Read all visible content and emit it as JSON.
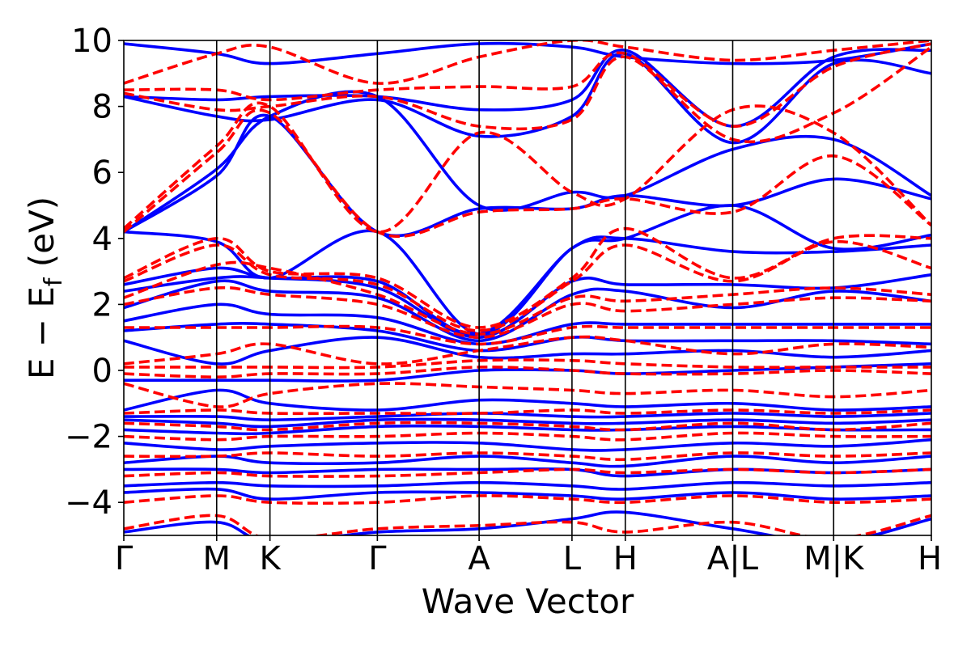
{
  "chart_data": {
    "type": "line",
    "title": "",
    "xlabel": "Wave Vector",
    "ylabel": "E − E",
    "ylabel_sub": "f",
    "ylabel_unit": " (eV)",
    "ylim": [
      -5,
      10
    ],
    "yticks": [
      -4,
      -2,
      0,
      2,
      4,
      6,
      8,
      10
    ],
    "ytick_labels": [
      "−4",
      "−2",
      "0",
      "2",
      "4",
      "6",
      "8",
      "10"
    ],
    "xlim": [
      0,
      1
    ],
    "kpoints": [
      {
        "label": "Γ",
        "x": 0.0
      },
      {
        "label": "M",
        "x": 0.115
      },
      {
        "label": "K",
        "x": 0.181
      },
      {
        "label": "Γ",
        "x": 0.314
      },
      {
        "label": "A",
        "x": 0.44
      },
      {
        "label": "L",
        "x": 0.555
      },
      {
        "label": "H",
        "x": 0.621
      },
      {
        "label": "A|L",
        "x": 0.754
      },
      {
        "label": "M|K",
        "x": 0.879
      },
      {
        "label": "H",
        "x": 1.0
      }
    ],
    "grid": false,
    "legend": "none",
    "series_styles": [
      {
        "color": "#0000ff",
        "dash": "solid"
      },
      {
        "color": "#ff0000",
        "dash": "dashed"
      }
    ],
    "series": [
      {
        "color": "#0000ff",
        "dash": "solid",
        "bands": [
          [
            9.9,
            9.6,
            9.3,
            9.6,
            9.9,
            9.8,
            9.5,
            9.3,
            9.4,
            9.9
          ],
          [
            8.3,
            8.2,
            8.3,
            8.3,
            7.9,
            8.2,
            9.7,
            7.4,
            9.5,
            9.7
          ],
          [
            8.3,
            7.7,
            7.6,
            8.2,
            7.1,
            7.7,
            9.6,
            6.9,
            9.3,
            9.0
          ],
          [
            4.2,
            6.1,
            7.7,
            8.3,
            5.0,
            5.4,
            5.3,
            6.7,
            7.0,
            5.3
          ],
          [
            4.2,
            5.9,
            7.7,
            4.2,
            4.9,
            4.9,
            5.3,
            5.0,
            5.8,
            5.2
          ],
          [
            4.2,
            3.9,
            2.8,
            4.2,
            1.1,
            3.7,
            4.0,
            5.0,
            3.7,
            4.1
          ],
          [
            2.6,
            3.1,
            2.8,
            2.7,
            1.1,
            3.7,
            4.0,
            3.6,
            3.6,
            3.8
          ],
          [
            2.4,
            2.8,
            2.8,
            2.5,
            1.0,
            2.7,
            2.6,
            2.6,
            2.5,
            2.9
          ],
          [
            1.9,
            2.7,
            2.4,
            2.2,
            0.9,
            2.3,
            2.4,
            1.9,
            2.4,
            2.1
          ],
          [
            1.5,
            2.0,
            1.7,
            1.6,
            0.8,
            1.4,
            1.4,
            1.4,
            1.4,
            1.4
          ],
          [
            1.2,
            1.4,
            1.4,
            1.2,
            0.6,
            1.0,
            0.9,
            0.9,
            0.9,
            0.8
          ],
          [
            0.9,
            0.2,
            0.6,
            1.0,
            0.4,
            0.5,
            0.5,
            0.6,
            0.4,
            0.6
          ],
          [
            -0.3,
            -0.3,
            -0.3,
            -0.3,
            0.0,
            0.0,
            -0.1,
            0.0,
            0.1,
            0.2
          ],
          [
            -1.2,
            -0.6,
            -1.0,
            -1.2,
            -0.9,
            -1.0,
            -1.1,
            -1.0,
            -1.2,
            -1.1
          ],
          [
            -1.4,
            -1.4,
            -1.5,
            -1.4,
            -1.3,
            -1.4,
            -1.4,
            -1.3,
            -1.4,
            -1.3
          ],
          [
            -1.5,
            -1.6,
            -1.7,
            -1.5,
            -1.5,
            -1.6,
            -1.6,
            -1.5,
            -1.6,
            -1.5
          ],
          [
            -1.8,
            -1.9,
            -1.9,
            -1.7,
            -1.7,
            -1.8,
            -1.8,
            -1.7,
            -1.8,
            -1.8
          ],
          [
            -2.2,
            -2.4,
            -2.3,
            -2.2,
            -2.2,
            -2.4,
            -2.4,
            -2.2,
            -2.3,
            -2.1
          ],
          [
            -2.8,
            -2.6,
            -2.8,
            -2.8,
            -2.6,
            -2.8,
            -2.9,
            -2.6,
            -2.8,
            -2.6
          ],
          [
            -3.0,
            -3.0,
            -3.1,
            -3.0,
            -3.0,
            -3.0,
            -3.2,
            -3.0,
            -3.1,
            -3.0
          ],
          [
            -3.5,
            -3.4,
            -3.5,
            -3.5,
            -3.4,
            -3.5,
            -3.6,
            -3.4,
            -3.5,
            -3.4
          ],
          [
            -3.7,
            -3.6,
            -3.9,
            -3.7,
            -3.7,
            -3.8,
            -3.9,
            -3.7,
            -3.9,
            -3.8
          ],
          [
            -4.9,
            -4.6,
            -5.2,
            -4.9,
            -4.8,
            -4.5,
            -4.3,
            -4.8,
            -5.2,
            -4.5
          ]
        ]
      },
      {
        "color": "#ff0000",
        "dash": "dashed",
        "bands": [
          [
            8.7,
            9.6,
            9.8,
            8.7,
            9.5,
            10.0,
            9.8,
            9.4,
            9.7,
            10.0
          ],
          [
            8.5,
            8.5,
            8.2,
            8.5,
            8.6,
            8.6,
            9.6,
            7.4,
            9.2,
            9.9
          ],
          [
            8.4,
            7.9,
            8.0,
            8.3,
            7.4,
            7.6,
            9.5,
            7.0,
            7.8,
            9.8
          ],
          [
            4.3,
            6.8,
            8.0,
            4.2,
            7.2,
            5.4,
            5.2,
            7.9,
            7.2,
            4.4
          ],
          [
            4.2,
            6.6,
            7.8,
            4.2,
            4.8,
            4.9,
            5.2,
            4.8,
            6.5,
            4.4
          ],
          [
            2.8,
            4.0,
            3.0,
            2.8,
            1.3,
            2.8,
            4.3,
            2.8,
            4.0,
            4.0
          ],
          [
            2.7,
            3.8,
            2.9,
            2.6,
            1.2,
            2.7,
            3.8,
            2.7,
            3.9,
            3.1
          ],
          [
            2.2,
            3.2,
            3.1,
            2.3,
            1.1,
            2.2,
            2.1,
            2.3,
            2.5,
            2.3
          ],
          [
            2.0,
            2.5,
            2.3,
            2.0,
            1.0,
            2.0,
            1.8,
            2.0,
            2.2,
            2.1
          ],
          [
            1.3,
            1.3,
            1.3,
            1.3,
            0.8,
            1.3,
            1.3,
            1.3,
            1.3,
            1.3
          ],
          [
            0.2,
            0.5,
            0.8,
            0.2,
            0.6,
            1.0,
            0.9,
            0.5,
            0.8,
            0.7
          ],
          [
            0.1,
            0.1,
            0.1,
            0.1,
            0.3,
            0.3,
            0.2,
            0.1,
            0.1,
            0.1
          ],
          [
            -0.1,
            -0.2,
            -0.1,
            -0.1,
            0.1,
            0.0,
            -0.1,
            -0.1,
            0.0,
            -0.1
          ],
          [
            -0.4,
            -1.1,
            -0.7,
            -0.4,
            -0.5,
            -0.6,
            -0.7,
            -0.6,
            -0.8,
            -0.6
          ],
          [
            -1.3,
            -1.2,
            -1.3,
            -1.3,
            -1.3,
            -1.2,
            -1.3,
            -1.2,
            -1.3,
            -1.2
          ],
          [
            -1.6,
            -1.7,
            -1.8,
            -1.6,
            -1.6,
            -1.7,
            -1.8,
            -1.6,
            -1.8,
            -1.6
          ],
          [
            -2.0,
            -2.1,
            -2.0,
            -2.0,
            -1.9,
            -2.0,
            -2.1,
            -1.9,
            -2.0,
            -2.0
          ],
          [
            -2.6,
            -2.6,
            -2.5,
            -2.6,
            -2.5,
            -2.6,
            -2.7,
            -2.5,
            -2.6,
            -2.5
          ],
          [
            -3.2,
            -3.1,
            -3.2,
            -3.2,
            -3.1,
            -3.0,
            -3.1,
            -3.0,
            -3.1,
            -3.0
          ],
          [
            -4.0,
            -3.8,
            -4.0,
            -4.0,
            -3.8,
            -3.9,
            -4.0,
            -3.8,
            -4.0,
            -3.9
          ],
          [
            -4.8,
            -4.4,
            -5.1,
            -4.8,
            -4.7,
            -4.6,
            -4.9,
            -4.6,
            -5.1,
            -4.4
          ]
        ]
      }
    ]
  }
}
